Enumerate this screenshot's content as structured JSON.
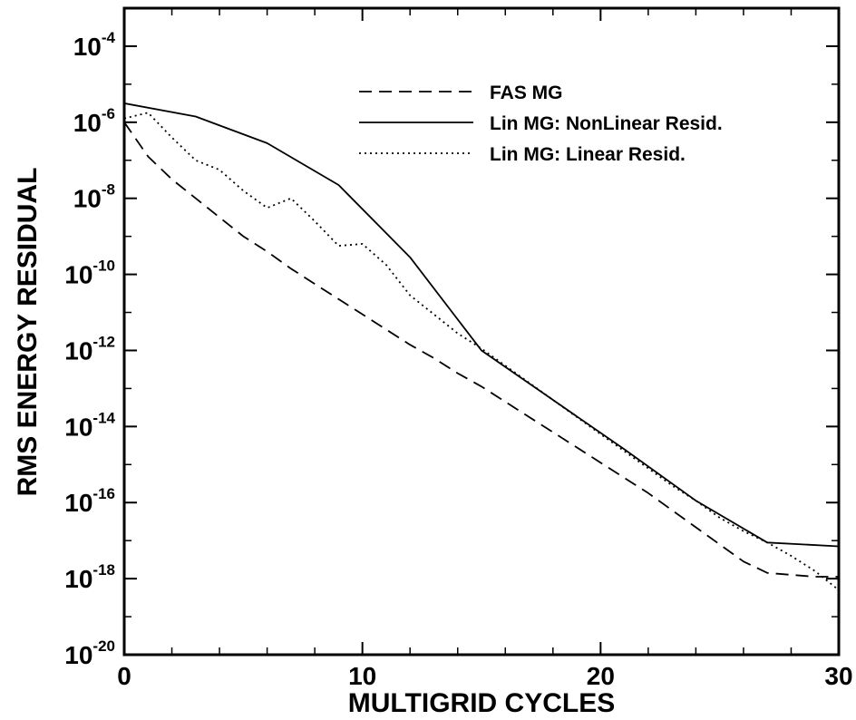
{
  "chart_data": {
    "type": "line",
    "title": "",
    "xlabel": "MULTIGRID CYCLES",
    "ylabel": "RMS ENERGY RESIDUAL",
    "xlim": [
      0,
      30
    ],
    "ylim_exponent": [
      -20,
      -3
    ],
    "yscale": "log",
    "grid": false,
    "legend_position": "top-right",
    "x_ticks": [
      {
        "value": 0,
        "label": "0"
      },
      {
        "value": 10,
        "label": "10"
      },
      {
        "value": 20,
        "label": "20"
      },
      {
        "value": 30,
        "label": "30"
      }
    ],
    "y_ticks": [
      {
        "exponent": -4,
        "base": "10",
        "exp": "-4"
      },
      {
        "exponent": -6,
        "base": "10",
        "exp": "-6"
      },
      {
        "exponent": -8,
        "base": "10",
        "exp": "-8"
      },
      {
        "exponent": -10,
        "base": "10",
        "exp": "-10"
      },
      {
        "exponent": -12,
        "base": "10",
        "exp": "-12"
      },
      {
        "exponent": -14,
        "base": "10",
        "exp": "-14"
      },
      {
        "exponent": -16,
        "base": "10",
        "exp": "-16"
      },
      {
        "exponent": -18,
        "base": "10",
        "exp": "-18"
      },
      {
        "exponent": -20,
        "base": "10",
        "exp": "-20"
      }
    ],
    "series": [
      {
        "name": "FAS MG",
        "style": "dashed",
        "x": [
          0,
          1,
          2,
          3,
          4,
          5,
          6,
          7,
          8,
          9,
          10,
          11,
          12,
          13,
          14,
          15,
          16,
          17,
          18,
          19,
          20,
          21,
          22,
          23,
          24,
          25,
          26,
          27,
          28,
          29,
          30
        ],
        "log10_y": [
          -6.0,
          -6.9,
          -7.5,
          -8.0,
          -8.5,
          -9.0,
          -9.4,
          -9.85,
          -10.25,
          -10.65,
          -11.05,
          -11.45,
          -11.85,
          -12.2,
          -12.6,
          -12.95,
          -13.35,
          -13.75,
          -14.15,
          -14.55,
          -14.95,
          -15.35,
          -15.75,
          -16.2,
          -16.65,
          -17.1,
          -17.55,
          -17.85,
          -17.9,
          -17.95,
          -17.95
        ]
      },
      {
        "name": "Lin MG: NonLinear Resid.",
        "style": "solid",
        "x": [
          0,
          3,
          6,
          9,
          12,
          15,
          18,
          21,
          24,
          27,
          30
        ],
        "log10_y": [
          -5.5,
          -5.85,
          -6.55,
          -7.65,
          -9.55,
          -12.0,
          -13.3,
          -14.6,
          -15.95,
          -17.05,
          -17.15
        ]
      },
      {
        "name": "Lin MG: Linear Resid.",
        "style": "dotted",
        "x": [
          0,
          1,
          2,
          3,
          4,
          5,
          6,
          7,
          8,
          9,
          10,
          11,
          12,
          13,
          14,
          15,
          16,
          17,
          18,
          19,
          20,
          21,
          22,
          23,
          24,
          25,
          26,
          27,
          28,
          29,
          30
        ],
        "log10_y": [
          -5.9,
          -5.75,
          -6.4,
          -7.0,
          -7.25,
          -7.8,
          -8.25,
          -8.0,
          -8.6,
          -9.25,
          -9.2,
          -9.75,
          -10.55,
          -11.05,
          -11.55,
          -11.95,
          -12.4,
          -12.85,
          -13.3,
          -13.75,
          -14.2,
          -14.65,
          -15.1,
          -15.55,
          -15.95,
          -16.4,
          -16.75,
          -17.05,
          -17.4,
          -17.8,
          -18.3
        ]
      }
    ]
  }
}
